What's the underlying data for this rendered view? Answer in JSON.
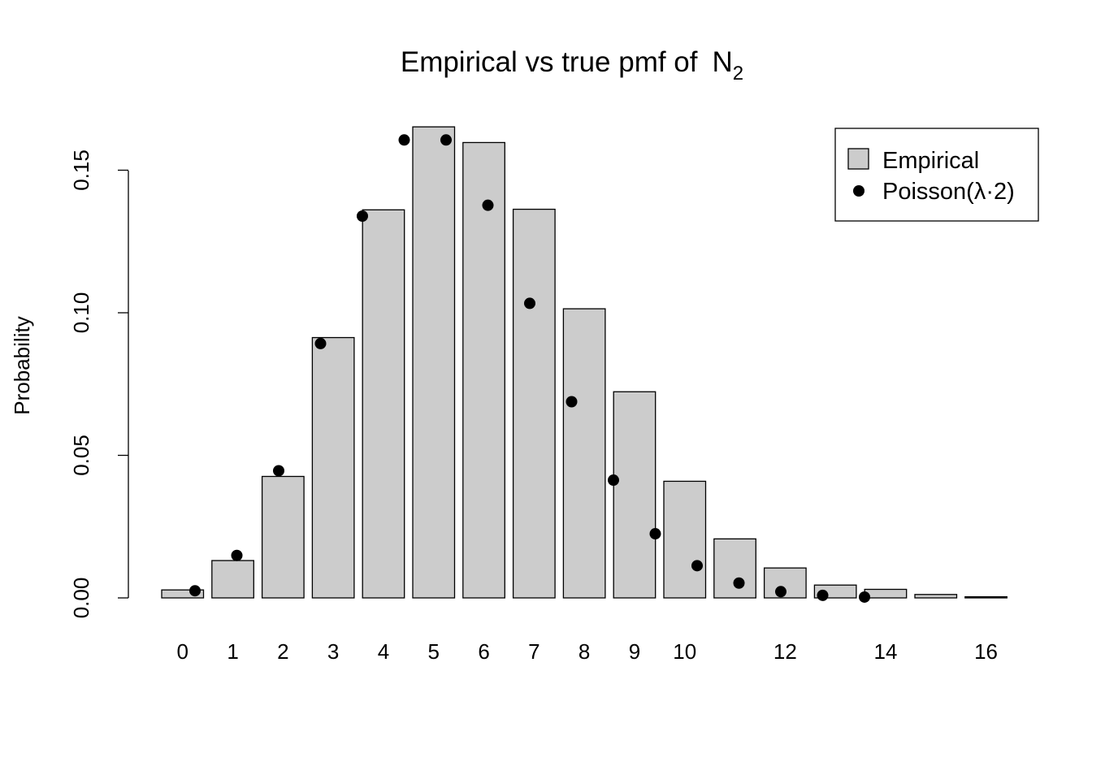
{
  "chart_data": {
    "type": "bar",
    "title": "Empirical vs true pmf of",
    "title_symbol": "N",
    "title_subscript": "2",
    "xlabel": "",
    "ylabel": "Probability",
    "ylim": [
      0,
      0.165
    ],
    "y_ticks": [
      "0.00",
      "0.05",
      "0.10",
      "0.15"
    ],
    "x_tick_labels": [
      "0",
      "1",
      "2",
      "3",
      "4",
      "5",
      "6",
      "7",
      "8",
      "9",
      "10",
      "12",
      "14",
      "16"
    ],
    "categories": [
      0,
      1,
      2,
      3,
      4,
      5,
      6,
      7,
      8,
      9,
      10,
      11,
      12,
      13,
      14,
      15,
      16
    ],
    "series": [
      {
        "name": "Empirical",
        "kind": "bar",
        "color": "#cccccc",
        "values": [
          0.0028,
          0.0131,
          0.0426,
          0.0913,
          0.1361,
          0.1652,
          0.1597,
          0.1363,
          0.1014,
          0.0723,
          0.0409,
          0.0207,
          0.0105,
          0.0045,
          0.003,
          0.0012,
          0.0004
        ]
      },
      {
        "name": "Poisson(λ·2)",
        "kind": "point",
        "color": "#000000",
        "values": [
          0.0025,
          0.0149,
          0.0446,
          0.0892,
          0.1339,
          0.1606,
          0.1606,
          0.1377,
          0.1033,
          0.0688,
          0.0413,
          0.0225,
          0.0113,
          0.0052,
          0.0022,
          0.0009,
          0.0003
        ]
      }
    ],
    "legend": {
      "position": "top-right",
      "items": [
        "Empirical",
        "Poisson(λ·2)"
      ]
    },
    "grid": false
  }
}
